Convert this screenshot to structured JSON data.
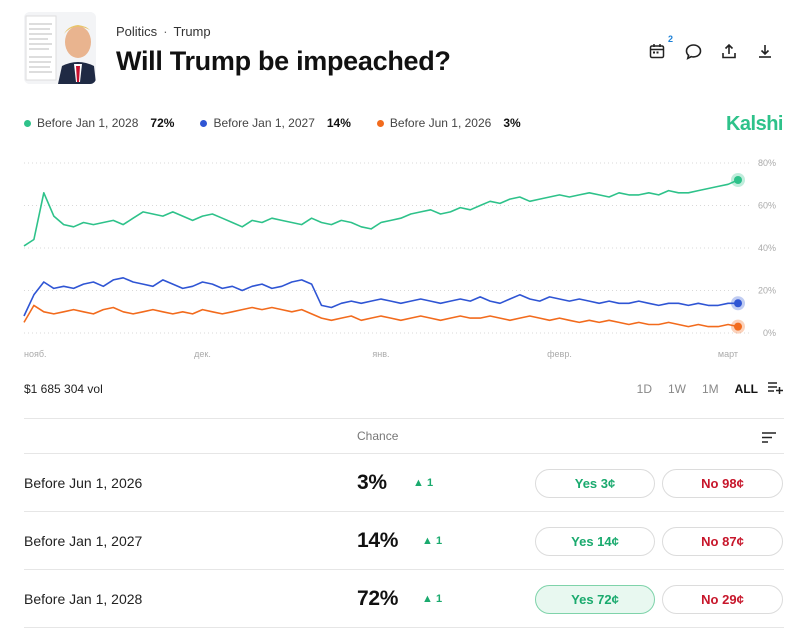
{
  "header": {
    "category": "Politics",
    "subcategory": "Trump",
    "title": "Will Trump be impeached?",
    "calendar_badge": "2"
  },
  "legend": [
    {
      "label": "Before Jan 1, 2028",
      "value": "72%",
      "color": "#2ec28a"
    },
    {
      "label": "Before Jan 1, 2027",
      "value": "14%",
      "color": "#2f55d4"
    },
    {
      "label": "Before Jun 1, 2026",
      "value": "3%",
      "color": "#f26b1d"
    }
  ],
  "brand": "Kalshi",
  "chart_data": {
    "type": "line",
    "x_labels": [
      "нояб.",
      "дек.",
      "янв.",
      "февр.",
      "март"
    ],
    "y_ticks": [
      "80%",
      "60%",
      "40%",
      "20%",
      "0%"
    ],
    "ylim": [
      0,
      80
    ],
    "grid": true,
    "series": [
      {
        "name": "Before Jan 1, 2028",
        "color": "#2ec28a",
        "values": [
          41,
          44,
          66,
          55,
          51,
          50,
          52,
          51,
          52,
          53,
          51,
          54,
          57,
          56,
          55,
          57,
          55,
          53,
          55,
          56,
          54,
          52,
          50,
          53,
          52,
          54,
          53,
          52,
          51,
          54,
          52,
          51,
          53,
          52,
          50,
          49,
          52,
          53,
          54,
          56,
          57,
          58,
          56,
          57,
          59,
          58,
          60,
          62,
          61,
          63,
          64,
          62,
          63,
          64,
          65,
          64,
          65,
          66,
          65,
          64,
          66,
          65,
          65,
          66,
          65,
          67,
          66,
          66,
          67,
          68,
          69,
          70,
          72
        ]
      },
      {
        "name": "Before Jan 1, 2027",
        "color": "#2f55d4",
        "values": [
          8,
          18,
          24,
          21,
          22,
          21,
          23,
          24,
          22,
          25,
          26,
          24,
          23,
          22,
          25,
          23,
          21,
          22,
          24,
          23,
          21,
          22,
          20,
          22,
          23,
          21,
          22,
          24,
          25,
          23,
          13,
          12,
          14,
          15,
          14,
          15,
          16,
          15,
          14,
          15,
          16,
          15,
          14,
          15,
          16,
          15,
          17,
          15,
          14,
          16,
          18,
          16,
          15,
          17,
          16,
          15,
          16,
          15,
          14,
          15,
          14,
          14,
          15,
          14,
          13,
          14,
          14,
          13,
          14,
          13,
          13,
          14,
          14
        ]
      },
      {
        "name": "Before Jun 1, 2026",
        "color": "#f26b1d",
        "values": [
          5,
          13,
          10,
          9,
          10,
          11,
          10,
          9,
          11,
          12,
          10,
          9,
          10,
          11,
          10,
          9,
          10,
          9,
          11,
          10,
          9,
          10,
          11,
          12,
          11,
          12,
          11,
          10,
          11,
          9,
          7,
          6,
          7,
          8,
          6,
          7,
          8,
          7,
          6,
          7,
          8,
          7,
          6,
          7,
          8,
          7,
          7,
          8,
          7,
          6,
          7,
          8,
          7,
          6,
          7,
          6,
          5,
          6,
          5,
          6,
          5,
          4,
          5,
          4,
          4,
          5,
          4,
          3,
          4,
          3,
          3,
          4,
          3
        ]
      }
    ]
  },
  "volume": "$1 685 304 vol",
  "ranges": [
    "1D",
    "1W",
    "1M",
    "ALL"
  ],
  "table": {
    "header_chance": "Chance",
    "rows": [
      {
        "name": "Before Jun 1, 2026",
        "pct": "3%",
        "change": "▲ 1",
        "yes": "Yes 3¢",
        "no": "No 98¢"
      },
      {
        "name": "Before Jan 1, 2027",
        "pct": "14%",
        "change": "▲ 1",
        "yes": "Yes 14¢",
        "no": "No 87¢"
      },
      {
        "name": "Before Jan 1, 2028",
        "pct": "72%",
        "change": "▲ 1",
        "yes": "Yes 72¢",
        "no": "No 29¢"
      }
    ]
  }
}
